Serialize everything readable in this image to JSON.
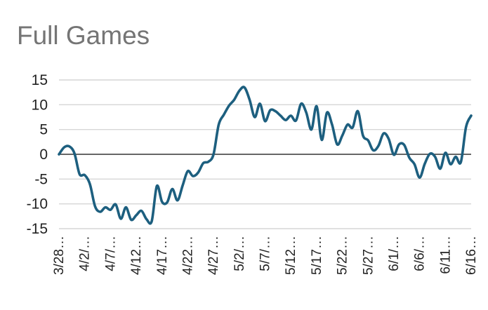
{
  "chart_data": {
    "type": "line",
    "title": "Full Games",
    "xlabel": "",
    "ylabel": "",
    "ylim": [
      -15,
      15
    ],
    "yticks": [
      "15",
      "10",
      "5",
      "0",
      "-5",
      "-10",
      "-15"
    ],
    "xtick_labels": [
      "3/28…",
      "4/2/…",
      "4/7/…",
      "4/12…",
      "4/17…",
      "4/22…",
      "4/27…",
      "5/2/…",
      "5/7/…",
      "5/12…",
      "5/17…",
      "5/22…",
      "5/27…",
      "6/1/…",
      "6/6/…",
      "6/11…",
      "6/16…"
    ],
    "grid": true,
    "legend": "none",
    "line_color": "#1d5f7f",
    "series": [
      {
        "values": [
          0,
          1.4,
          1.6,
          0.2,
          -4,
          -4.2,
          -6,
          -10.5,
          -11.6,
          -10.7,
          -11.2,
          -10.1,
          -13,
          -10.7,
          -13.2,
          -12.3,
          -11.4,
          -13.1,
          -13.5,
          -6.4,
          -9.6,
          -9.7,
          -7,
          -9.3,
          -6.3,
          -3.4,
          -4.4,
          -3.7,
          -1.8,
          -1.5,
          0,
          6,
          8,
          9.8,
          11,
          12.8,
          13.5,
          11,
          7.5,
          10.2,
          6.7,
          8.9,
          8.7,
          7.8,
          6.9,
          7.8,
          6.8,
          10.2,
          8.4,
          5,
          9.7,
          2.9,
          8.4,
          6,
          2,
          3.8,
          6,
          5.4,
          8.7,
          3.8,
          2.8,
          0.8,
          1.7,
          4.2,
          3.1,
          -0.1,
          2,
          1.9,
          -0.7,
          -2,
          -4.7,
          -1.9,
          0.1,
          -0.5,
          -2.9,
          0.3,
          -2,
          -0.5,
          -1.6,
          5.5,
          7.8
        ]
      }
    ]
  }
}
